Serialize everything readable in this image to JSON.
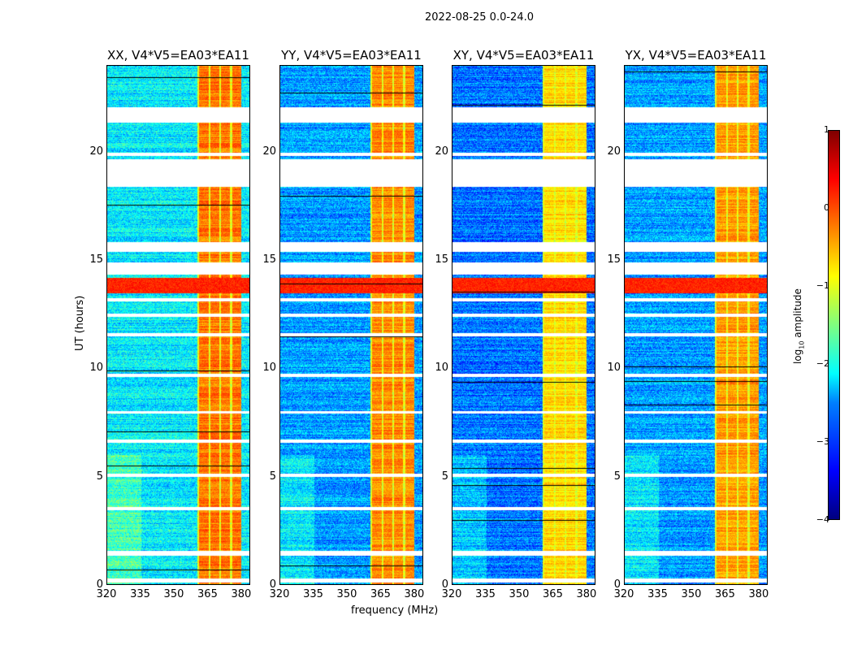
{
  "suptitle": "2022-08-25 0.0-24.0",
  "chart_data": {
    "type": "heatmap",
    "title": "2022-08-25 0.0-24.0",
    "xlabel": "frequency (MHz)",
    "ylabel": "UT (hours)",
    "xlim": [
      320,
      384
    ],
    "ylim": [
      0,
      24
    ],
    "xticks": [
      "320",
      "335",
      "350",
      "365",
      "380"
    ],
    "xtick_values": [
      320,
      335,
      350,
      365,
      380
    ],
    "yticks": [
      "0",
      "5",
      "10",
      "15",
      "20"
    ],
    "ytick_values": [
      0,
      5,
      10,
      15,
      20
    ],
    "panels": [
      {
        "title": "XX, V4*V5=EA03*EA11",
        "base_level": -2.2,
        "rfi_level": -0.2
      },
      {
        "title": "YY, V4*V5=EA03*EA11",
        "base_level": -2.6,
        "rfi_level": -0.3
      },
      {
        "title": "XY, V4*V5=EA03*EA11",
        "base_level": -2.8,
        "rfi_level": -0.7
      },
      {
        "title": "YX, V4*V5=EA03*EA11",
        "base_level": -2.6,
        "rfi_level": -0.4
      }
    ],
    "rfi_band_mhz": [
      360.5,
      380
    ],
    "flagged_hours": [
      [
        0.1,
        0.3
      ],
      [
        1.35,
        1.57
      ],
      [
        3.45,
        3.6
      ],
      [
        5.0,
        5.15
      ],
      [
        6.55,
        6.7
      ],
      [
        7.9,
        8.05
      ],
      [
        9.6,
        9.75
      ],
      [
        11.5,
        11.65
      ],
      [
        12.4,
        12.55
      ],
      [
        13.1,
        13.25
      ],
      [
        14.35,
        14.9
      ],
      [
        15.4,
        15.85
      ],
      [
        18.4,
        19.7
      ],
      [
        19.85,
        20.0
      ],
      [
        21.4,
        22.1
      ]
    ],
    "bright_hours": [
      13.5,
      14.2
    ],
    "colorbar": {
      "label": "log10 amplitude",
      "range": [
        -4,
        1
      ],
      "ticks": [
        "1",
        "0",
        "−1",
        "−2",
        "−3",
        "−4"
      ],
      "colormap": "jet"
    }
  }
}
